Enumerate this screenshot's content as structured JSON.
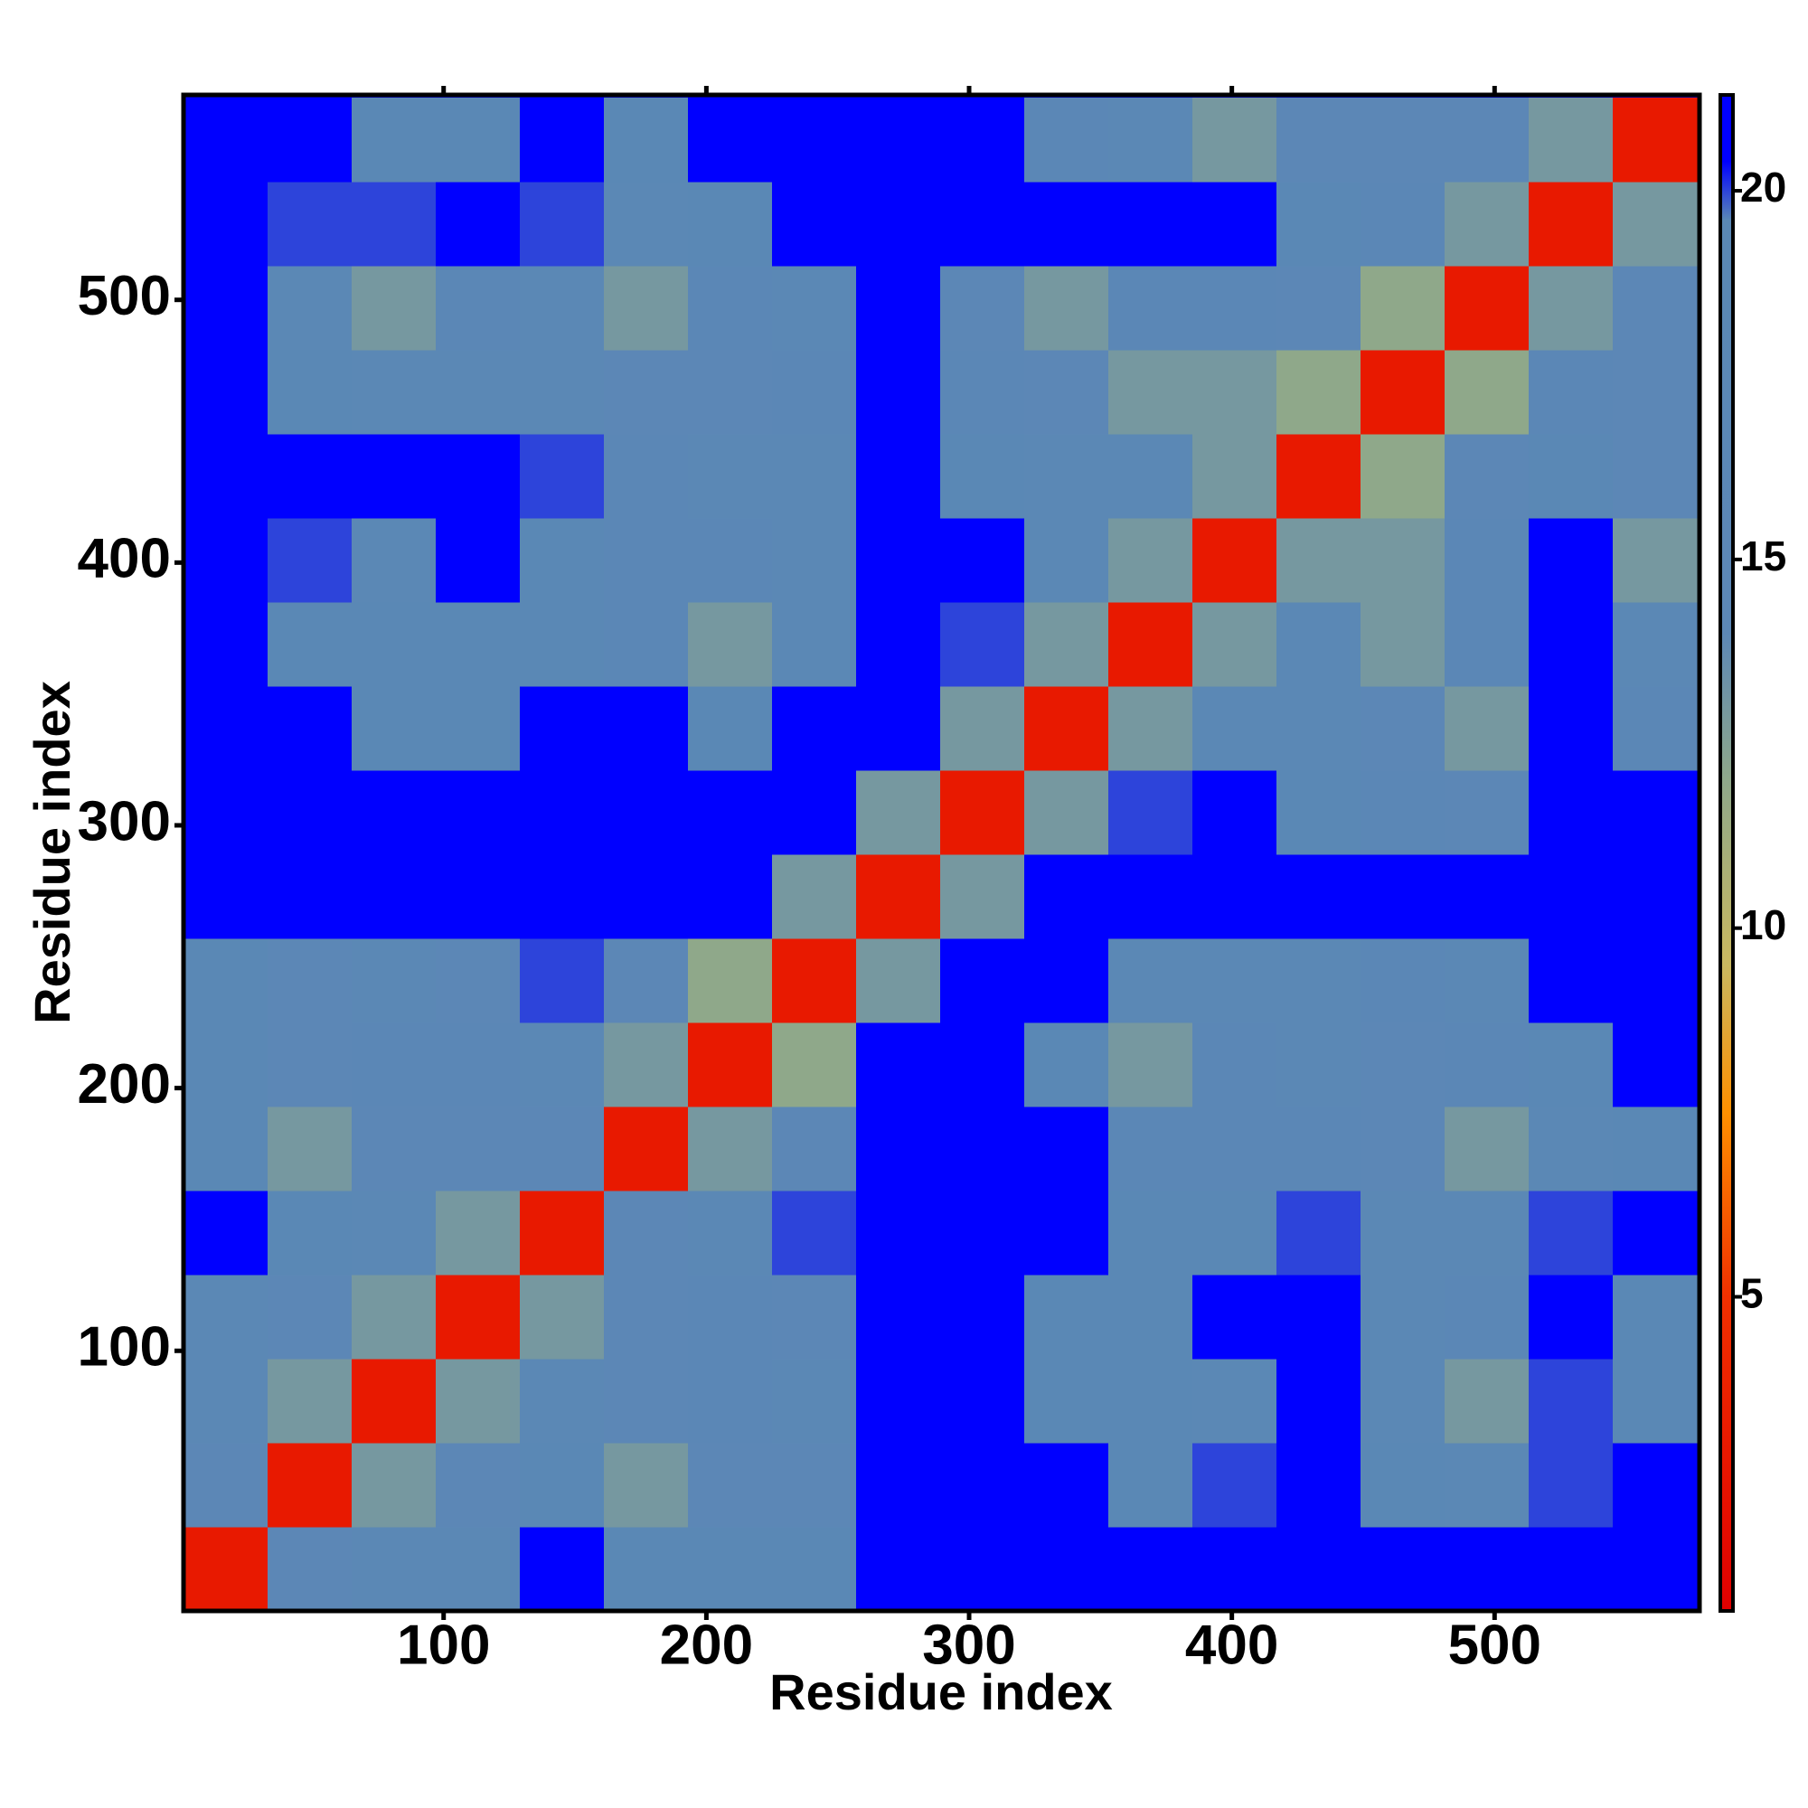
{
  "chart_data": {
    "type": "heatmap",
    "xlabel": "Residue index",
    "ylabel": "Residue index",
    "xlim": [
      1,
      578
    ],
    "ylim": [
      1,
      578
    ],
    "xticks": [
      100,
      200,
      300,
      400,
      500
    ],
    "yticks": [
      100,
      200,
      300,
      400,
      500
    ],
    "x_bins": [
      1,
      33,
      65,
      97,
      129,
      161,
      193,
      225,
      257,
      289,
      321,
      353,
      385,
      417,
      449,
      481,
      513,
      545,
      577
    ],
    "y_bins": [
      1,
      33,
      65,
      97,
      129,
      161,
      193,
      225,
      257,
      289,
      321,
      353,
      385,
      417,
      449,
      481,
      513,
      545,
      577
    ],
    "values": [
      [
        3,
        14,
        17,
        18,
        21,
        19,
        19,
        19,
        21,
        21,
        21,
        21,
        21,
        21,
        21,
        21,
        21,
        21
      ],
      [
        14,
        3,
        13,
        15,
        19,
        13,
        14,
        15,
        21,
        21,
        21,
        19,
        20,
        21,
        19,
        17,
        20,
        21
      ],
      [
        17,
        13,
        3,
        13,
        18,
        14,
        16,
        17,
        21,
        21,
        19,
        19,
        18,
        21,
        17,
        13,
        20,
        19
      ],
      [
        18,
        15,
        13,
        3,
        13,
        15,
        16,
        15,
        21,
        21,
        19,
        19,
        21,
        21,
        17,
        16,
        21,
        19
      ],
      [
        21,
        19,
        18,
        13,
        3,
        14,
        18,
        20,
        21,
        21,
        21,
        19,
        19,
        20,
        18,
        17,
        20,
        21
      ],
      [
        19,
        13,
        14,
        15,
        14,
        3,
        13,
        15,
        21,
        21,
        21,
        16,
        16,
        16,
        15,
        13,
        18,
        19
      ],
      [
        19,
        14,
        16,
        16,
        18,
        13,
        3,
        12,
        21,
        21,
        19,
        13,
        16,
        18,
        14,
        16,
        19,
        21
      ],
      [
        19,
        15,
        17,
        15,
        20,
        15,
        12,
        3,
        13,
        21,
        21,
        17,
        18,
        18,
        16,
        18,
        21,
        21
      ],
      [
        21,
        21,
        21,
        21,
        21,
        21,
        21,
        13,
        3,
        13,
        21,
        21,
        21,
        21,
        21,
        21,
        21,
        21
      ],
      [
        21,
        21,
        21,
        21,
        21,
        21,
        21,
        21,
        13,
        3,
        13,
        20,
        21,
        19,
        16,
        15,
        21,
        21
      ],
      [
        21,
        21,
        19,
        19,
        21,
        21,
        19,
        21,
        21,
        13,
        3,
        13,
        17,
        17,
        14,
        13,
        21,
        16
      ],
      [
        21,
        19,
        19,
        19,
        19,
        16,
        13,
        17,
        21,
        20,
        13,
        3,
        13,
        17,
        13,
        16,
        21,
        18
      ],
      [
        21,
        20,
        18,
        21,
        19,
        16,
        16,
        18,
        21,
        21,
        17,
        13,
        3,
        13,
        13,
        16,
        21,
        13
      ],
      [
        21,
        21,
        21,
        21,
        20,
        16,
        18,
        18,
        21,
        19,
        17,
        17,
        13,
        3,
        12,
        15,
        19,
        15
      ],
      [
        21,
        19,
        17,
        17,
        18,
        15,
        14,
        16,
        21,
        16,
        14,
        13,
        13,
        12,
        3,
        12,
        16,
        15
      ],
      [
        21,
        17,
        13,
        16,
        17,
        13,
        16,
        18,
        21,
        15,
        13,
        16,
        16,
        15,
        12,
        3,
        13,
        15
      ],
      [
        21,
        20,
        20,
        21,
        20,
        18,
        19,
        21,
        21,
        21,
        21,
        21,
        21,
        19,
        16,
        13,
        3,
        13
      ],
      [
        21,
        21,
        19,
        19,
        21,
        19,
        21,
        21,
        21,
        21,
        16,
        18,
        13,
        15,
        15,
        15,
        13,
        3
      ]
    ],
    "zlim": [
      0.74,
      21.3
    ],
    "zticks": [
      5,
      10,
      15,
      20
    ],
    "colorscale": [
      [
        0.74,
        "#e00000"
      ],
      [
        5,
        "#f03000"
      ],
      [
        7.5,
        "#ff9000"
      ],
      [
        9.5,
        "#c9b860"
      ],
      [
        12,
        "#8fa88a"
      ],
      [
        14,
        "#5c87b6"
      ],
      [
        19.6,
        "#5a88b5"
      ],
      [
        20.4,
        "#0000ff"
      ],
      [
        21.3,
        "#0000ff"
      ]
    ]
  }
}
